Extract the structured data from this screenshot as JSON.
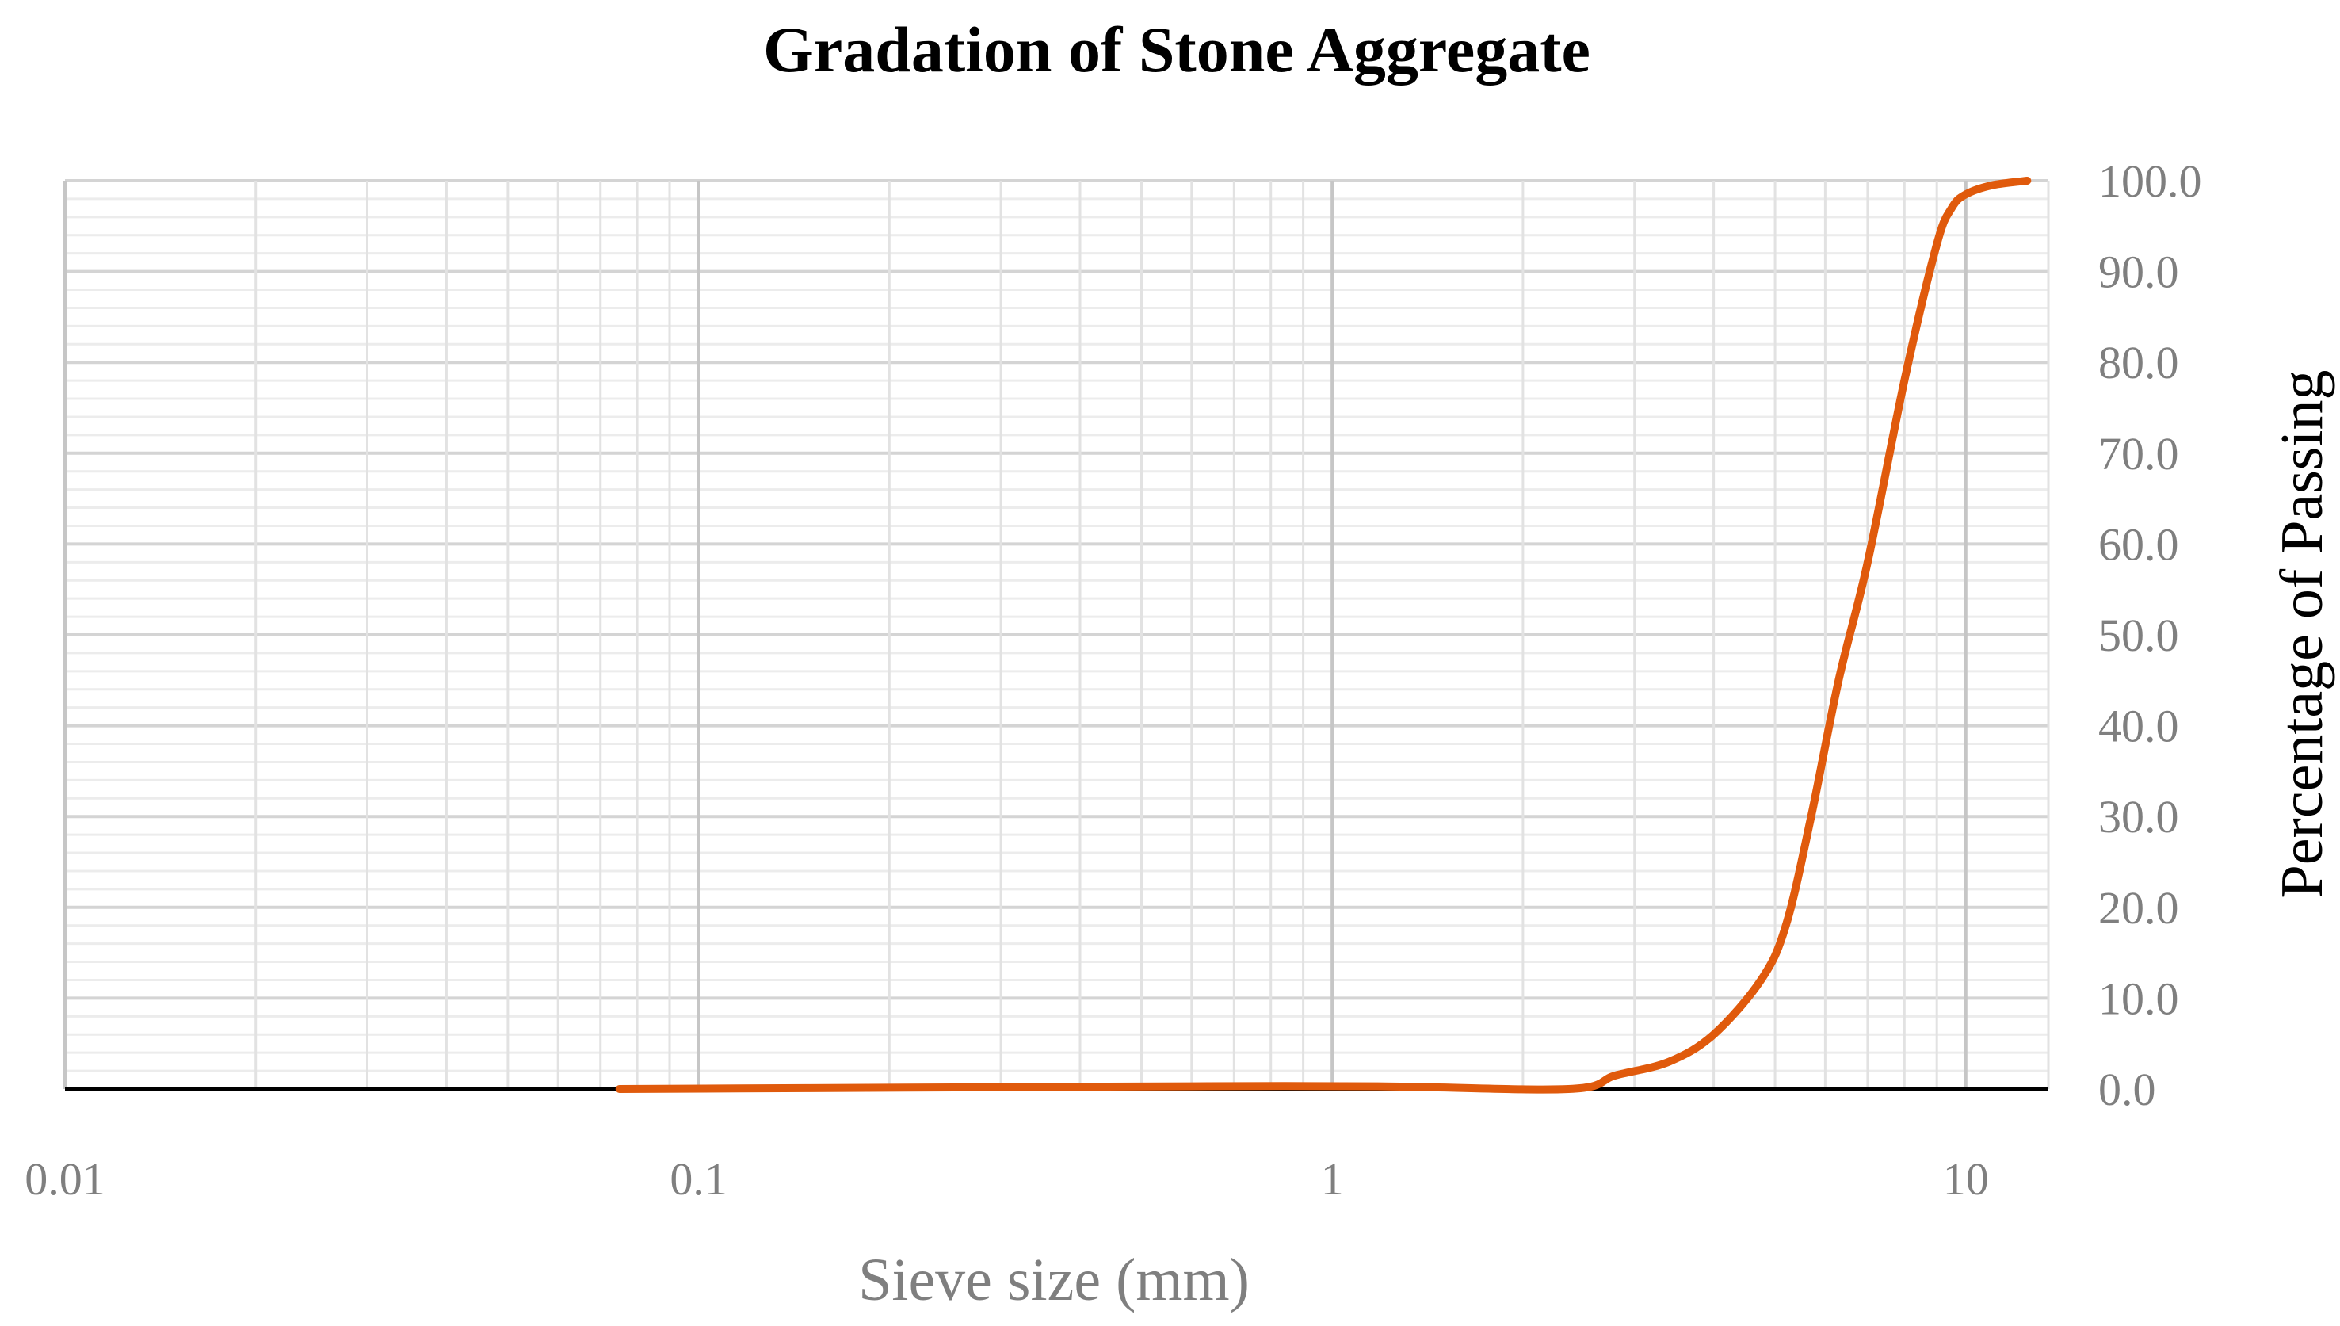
{
  "chart_data": {
    "type": "line",
    "title": "Gradation of Stone Aggregate",
    "xlabel": "Sieve size (mm)",
    "ylabel": "Percentage of Passing",
    "x_scale": "log",
    "xlim": [
      0.01,
      13.5
    ],
    "ylim": [
      0,
      100
    ],
    "x_ticks": [
      0.01,
      0.1,
      1,
      10
    ],
    "x_tick_labels": [
      "0.01",
      "0.1",
      "1",
      "10"
    ],
    "y_ticks": [
      0,
      10,
      20,
      30,
      40,
      50,
      60,
      70,
      80,
      90,
      100
    ],
    "y_tick_labels": [
      "0.0",
      "10.0",
      "20.0",
      "30.0",
      "40.0",
      "50.0",
      "60.0",
      "70.0",
      "80.0",
      "90.0",
      "100.0"
    ],
    "y_axis_position": "right",
    "grid": true,
    "legend": "none",
    "series": [
      {
        "color": "#E05A0C",
        "x": [
          0.075,
          0.15,
          0.3,
          0.6,
          1.18,
          2.36,
          2.8,
          3.4,
          4.0,
          4.75,
          5.2,
          5.7,
          6.3,
          7.0,
          8.0,
          9.0,
          9.5,
          10.0,
          11.0,
          12.5
        ],
        "y": [
          0.0,
          0.1,
          0.2,
          0.3,
          0.3,
          0.0,
          1.5,
          3.0,
          6.0,
          12.0,
          18.0,
          30.0,
          45.0,
          58.0,
          78.0,
          93.0,
          97.0,
          98.5,
          99.5,
          100.0
        ]
      }
    ]
  }
}
